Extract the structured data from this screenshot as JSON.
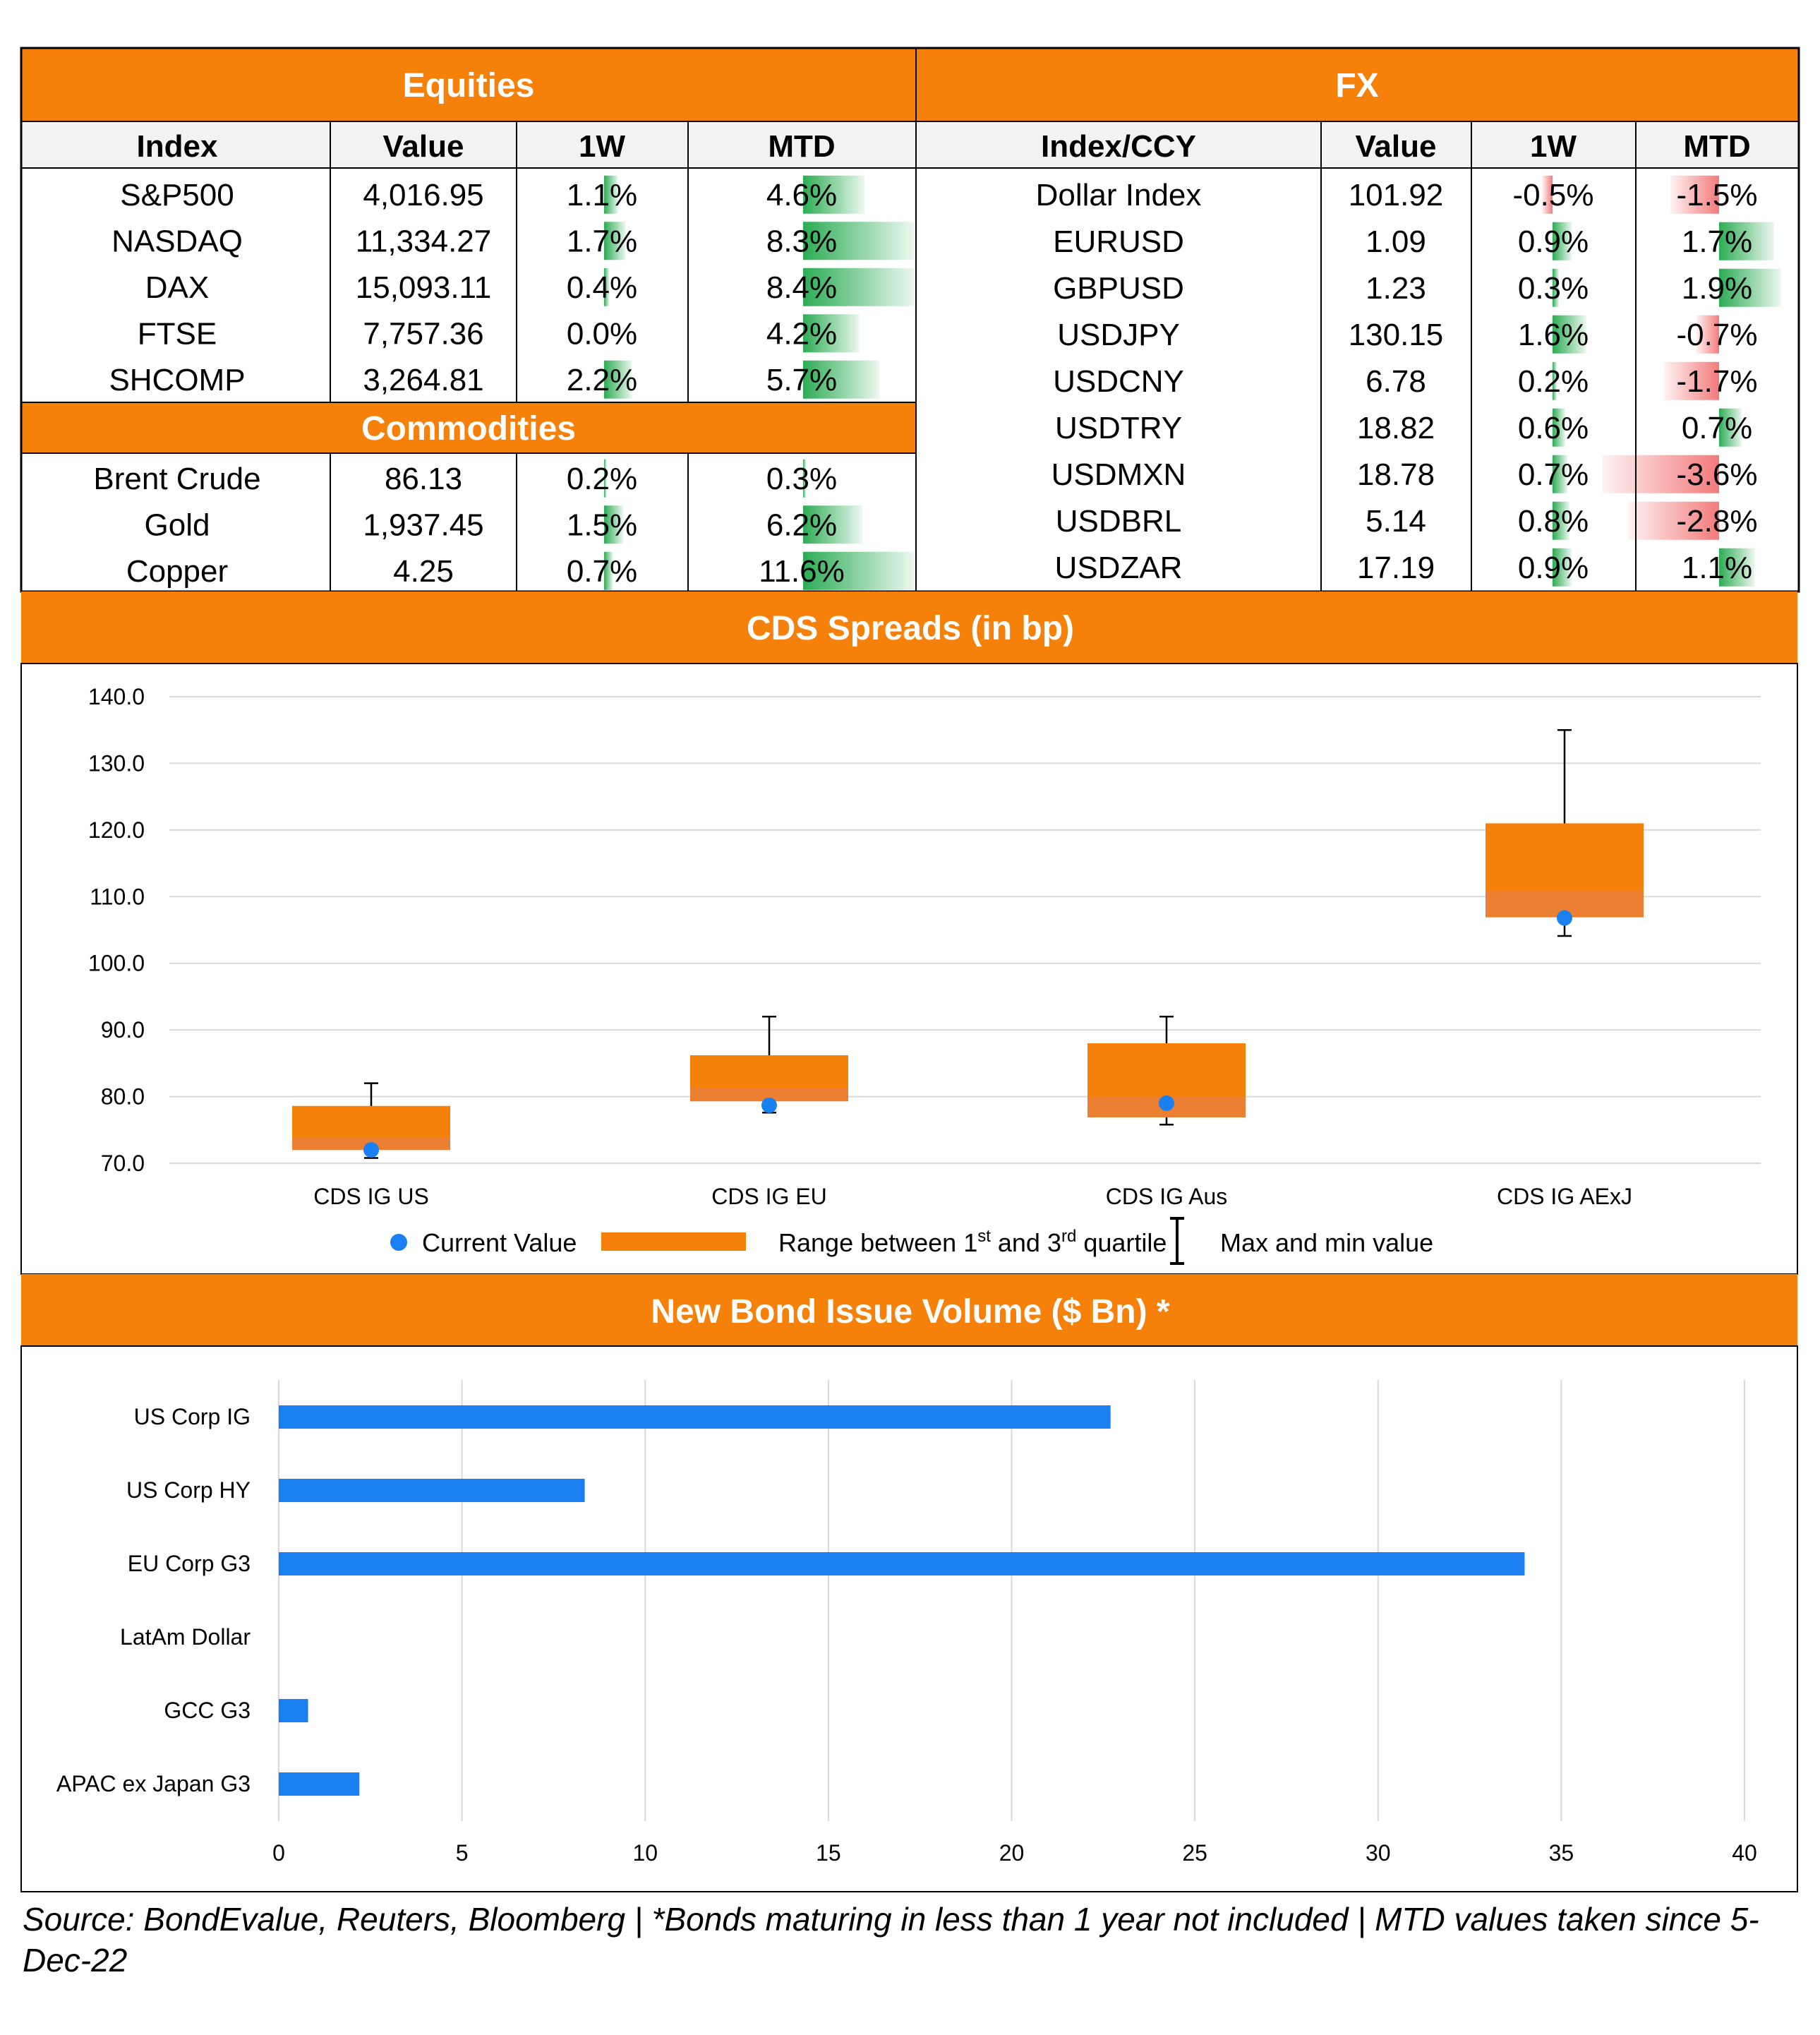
{
  "equities": {
    "title": "Equities",
    "headers": [
      "Index",
      "Value",
      "1W",
      "MTD"
    ],
    "rows": [
      {
        "name": "S&P500",
        "value": "4,016.95",
        "w1": "1.1%",
        "mtd": "4.6%"
      },
      {
        "name": "NASDAQ",
        "value": "11,334.27",
        "w1": "1.7%",
        "mtd": "8.3%"
      },
      {
        "name": "DAX",
        "value": "15,093.11",
        "w1": "0.4%",
        "mtd": "8.4%"
      },
      {
        "name": "FTSE",
        "value": "7,757.36",
        "w1": "0.0%",
        "mtd": "4.2%"
      },
      {
        "name": "SHCOMP",
        "value": "3,264.81",
        "w1": "2.2%",
        "mtd": "5.7%"
      }
    ]
  },
  "commodities": {
    "title": "Commodities",
    "rows": [
      {
        "name": "Brent Crude",
        "value": "86.13",
        "w1": "0.2%",
        "mtd": "0.3%"
      },
      {
        "name": "Gold",
        "value": "1,937.45",
        "w1": "1.5%",
        "mtd": "6.2%"
      },
      {
        "name": "Copper",
        "value": "4.25",
        "w1": "0.7%",
        "mtd": "11.6%"
      }
    ]
  },
  "fx": {
    "title": "FX",
    "headers": [
      "Index/CCY",
      "Value",
      "1W",
      "MTD"
    ],
    "rows": [
      {
        "name": "Dollar Index",
        "value": "101.92",
        "w1": "-0.5%",
        "mtd": "-1.5%"
      },
      {
        "name": "EURUSD",
        "value": "1.09",
        "w1": "0.9%",
        "mtd": "1.7%"
      },
      {
        "name": "GBPUSD",
        "value": "1.23",
        "w1": "0.3%",
        "mtd": "1.9%"
      },
      {
        "name": "USDJPY",
        "value": "130.15",
        "w1": "1.6%",
        "mtd": "-0.7%"
      },
      {
        "name": "USDCNY",
        "value": "6.78",
        "w1": "0.2%",
        "mtd": "-1.7%"
      },
      {
        "name": "USDTRY",
        "value": "18.82",
        "w1": "0.6%",
        "mtd": "0.7%"
      },
      {
        "name": "USDMXN",
        "value": "18.78",
        "w1": "0.7%",
        "mtd": "-3.6%"
      },
      {
        "name": "USDBRL",
        "value": "5.14",
        "w1": "0.8%",
        "mtd": "-2.8%"
      },
      {
        "name": "USDZAR",
        "value": "17.19",
        "w1": "0.9%",
        "mtd": "1.1%"
      }
    ]
  },
  "colors": {
    "accent": "#F5800A",
    "bar_blue": "#1A7FF0",
    "positive_bar": "#21A84A",
    "negative_bar": "#F26B6B",
    "header_bg": "#F2F2F2"
  },
  "source_note": "Source: BondEvalue, Reuters, Bloomberg | *Bonds maturing in less than 1 year not included | MTD values taken since 5-Dec-22",
  "chart_data": [
    {
      "type": "box",
      "title": "CDS Spreads (in bp)",
      "categories": [
        "CDS IG US",
        "CDS IG EU",
        "CDS IG Aus",
        "CDS IG AExJ"
      ],
      "q1": [
        72.0,
        79.3,
        76.9,
        106.9
      ],
      "q3": [
        78.6,
        86.2,
        88.0,
        121.0
      ],
      "min": [
        70.8,
        77.6,
        75.8,
        104.1
      ],
      "max": [
        82.0,
        92.0,
        92.0,
        135.0
      ],
      "current": [
        72.0,
        78.7,
        79.0,
        106.8
      ],
      "ylim": [
        70,
        140
      ],
      "yticks": [
        "70.0",
        "80.0",
        "90.0",
        "100.0",
        "110.0",
        "120.0",
        "130.0",
        "140.0"
      ],
      "grid": true,
      "legend": {
        "position": "bottom",
        "current": "Current Value",
        "range_prefix": "Range between 1",
        "range_sup1": "st",
        "range_mid": " and 3",
        "range_sup2": "rd",
        "range_suffix": " quartile",
        "maxmin": "Max and min value"
      }
    },
    {
      "type": "bar",
      "orientation": "horizontal",
      "title": "New Bond Issue Volume ($ Bn) *",
      "categories": [
        "US Corp IG",
        "US Corp HY",
        "EU Corp G3",
        "LatAm Dollar",
        "GCC G3",
        "APAC ex Japan G3"
      ],
      "values": [
        22.7,
        8.35,
        34.0,
        0,
        0.8,
        2.2
      ],
      "xlim": [
        0,
        40
      ],
      "xticks": [
        "0",
        "5",
        "10",
        "15",
        "20",
        "25",
        "30",
        "35",
        "40"
      ],
      "grid": true
    }
  ]
}
